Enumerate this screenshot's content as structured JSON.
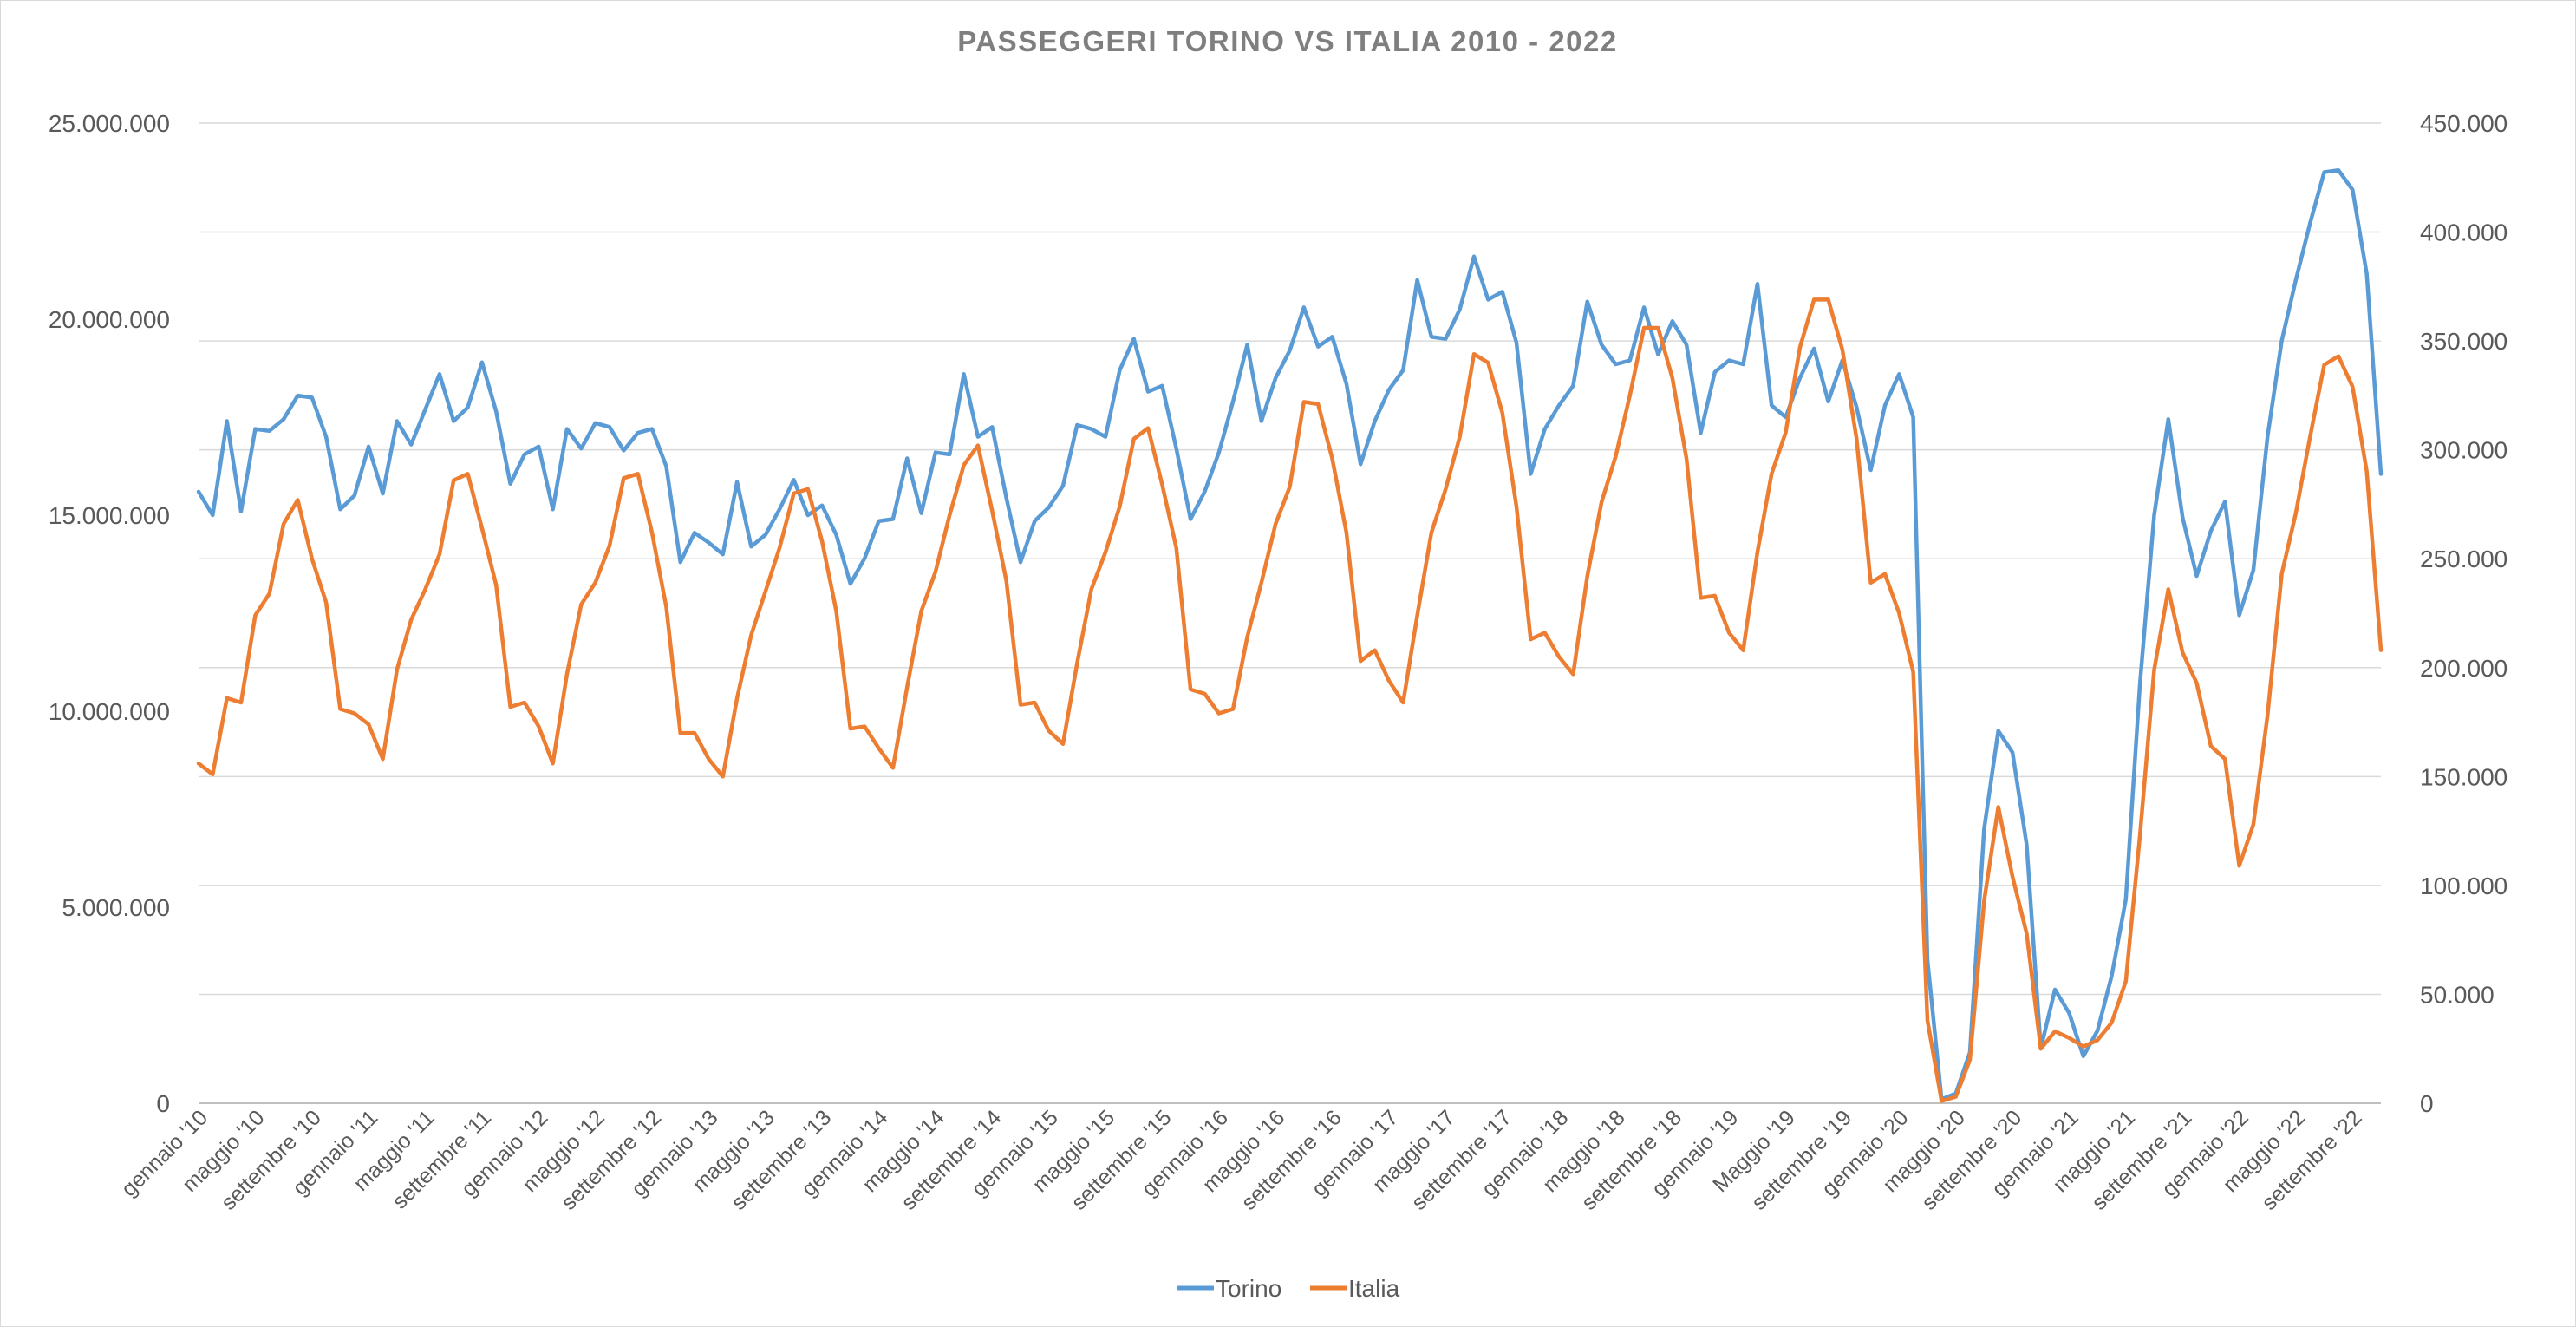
{
  "chart_data": {
    "type": "line",
    "title": "PASSEGGERI TORINO VS ITALIA 2010 - 2022",
    "xlabel": "",
    "ylabel": "",
    "y_left": {
      "min": 0,
      "max": 25000000,
      "step": 5000000,
      "tick_labels": [
        "0",
        "5.000.000",
        "10.000.000",
        "15.000.000",
        "20.000.000",
        "25.000.000"
      ]
    },
    "y_right": {
      "min": 0,
      "max": 450000,
      "step": 50000,
      "tick_labels": [
        "0",
        "50.000",
        "100.000",
        "150.000",
        "200.000",
        "250.000",
        "300.000",
        "350.000",
        "400.000",
        "450.000"
      ]
    },
    "grid": "horizontal",
    "legend_position": "bottom",
    "x_tick_labels": [
      "gennaio '10",
      "maggio '10",
      "settembre '10",
      "gennaio '11",
      "maggio '11",
      "settembre '11",
      "gennaio '12",
      "maggio '12",
      "settembre '12",
      "gennaio '13",
      "maggio '13",
      "settembre '13",
      "gennaio '14",
      "maggio '14",
      "settembre '14",
      "gennaio '15",
      "maggio '15",
      "settembre '15",
      "gennaio '16",
      "maggio '16",
      "settembre '16",
      "gennaio '17",
      "maggio '17",
      "settembre '17",
      "gennaio '18",
      "maggio '18",
      "settembre '18",
      "gennaio '19",
      "Maggio '19",
      "settembre '19",
      "gennaio '20",
      "maggio '20",
      "settembre '20",
      "gennaio '21",
      "maggio '21",
      "settembre '21",
      "gennaio '22",
      "maggio '22",
      "settembre '22"
    ],
    "series": [
      {
        "name": "Torino",
        "axis": "left",
        "color": "#5b9bd5",
        "values": [
          15600000,
          15000000,
          17400000,
          15100000,
          17200000,
          17150000,
          17450000,
          18050000,
          18000000,
          17000000,
          15150000,
          15500000,
          16750000,
          15550000,
          17400000,
          16800000,
          17700000,
          18600000,
          17400000,
          17750000,
          18900000,
          17650000,
          15800000,
          16550000,
          16750000,
          15150000,
          17200000,
          16700000,
          17350000,
          17250000,
          16650000,
          17100000,
          17200000,
          16250000,
          13800000,
          14550000,
          14300000,
          14000000,
          15850000,
          14200000,
          14500000,
          15150000,
          15900000,
          15000000,
          15250000,
          14500000,
          13250000,
          13900000,
          14850000,
          14900000,
          16450000,
          15050000,
          16600000,
          16550000,
          18600000,
          17000000,
          17250000,
          15450000,
          13800000,
          14850000,
          15200000,
          15750000,
          17300000,
          17200000,
          17000000,
          18700000,
          19500000,
          18150000,
          18300000,
          16700000,
          14900000,
          15600000,
          16600000,
          17900000,
          19350000,
          17400000,
          18500000,
          19200000,
          20300000,
          19300000,
          19550000,
          18350000,
          16300000,
          17400000,
          18200000,
          18700000,
          21000000,
          19550000,
          19500000,
          20250000,
          21600000,
          20500000,
          20700000,
          19400000,
          16050000,
          17200000,
          17800000,
          18300000,
          20450000,
          19350000,
          18850000,
          18950000,
          20300000,
          19100000,
          19950000,
          19350000,
          17100000,
          18650000,
          18950000,
          18850000,
          20900000,
          17800000,
          17500000,
          18500000,
          19250000,
          17900000,
          18950000,
          17750000,
          16150000,
          17800000,
          18600000,
          17500000,
          3650000,
          100000,
          250000,
          1300000,
          7000000,
          9500000,
          8950000,
          6600000,
          1400000,
          2900000,
          2300000,
          1200000,
          1850000,
          3250000,
          5200000,
          10700000,
          15000000,
          17450000,
          14950000,
          13450000,
          14600000,
          15350000,
          12450000,
          13600000,
          17000000,
          19450000,
          21000000,
          22450000,
          23750000,
          23800000,
          23300000,
          21150000,
          16050000
        ]
      },
      {
        "name": "Italia",
        "axis": "right",
        "color": "#ed7d31",
        "values": [
          156000,
          151000,
          186000,
          184000,
          224000,
          234000,
          266000,
          277000,
          250000,
          230000,
          181000,
          179000,
          174000,
          158000,
          199000,
          222000,
          236000,
          252000,
          286000,
          289000,
          264000,
          238000,
          182000,
          184000,
          173000,
          156000,
          197000,
          229000,
          239000,
          256000,
          287000,
          289000,
          262000,
          228000,
          170000,
          170000,
          158000,
          150000,
          186000,
          215000,
          235000,
          255000,
          280000,
          282000,
          258000,
          226000,
          172000,
          173000,
          163000,
          154000,
          191000,
          226000,
          244000,
          270000,
          293000,
          302000,
          272000,
          240000,
          183000,
          184000,
          171000,
          165000,
          202000,
          236000,
          253000,
          274000,
          305000,
          310000,
          284000,
          255000,
          190000,
          188000,
          179000,
          181000,
          214000,
          239000,
          266000,
          283000,
          322000,
          321000,
          296000,
          262000,
          203000,
          208000,
          194000,
          184000,
          224000,
          262000,
          282000,
          306000,
          344000,
          340000,
          317000,
          274000,
          213000,
          216000,
          205000,
          197000,
          242000,
          276000,
          297000,
          325000,
          356000,
          356000,
          333000,
          296000,
          232000,
          233000,
          216000,
          208000,
          253000,
          289000,
          308000,
          347000,
          369000,
          369000,
          346000,
          305000,
          239000,
          243000,
          225000,
          198000,
          38000,
          1000,
          3000,
          20000,
          93000,
          136000,
          104000,
          78000,
          25000,
          33000,
          30000,
          26000,
          29000,
          37000,
          56000,
          123000,
          199000,
          236000,
          207000,
          193000,
          164000,
          158000,
          109000,
          128000,
          178000,
          243000,
          271000,
          306000,
          339000,
          343000,
          329000,
          290000,
          208000
        ]
      }
    ]
  }
}
